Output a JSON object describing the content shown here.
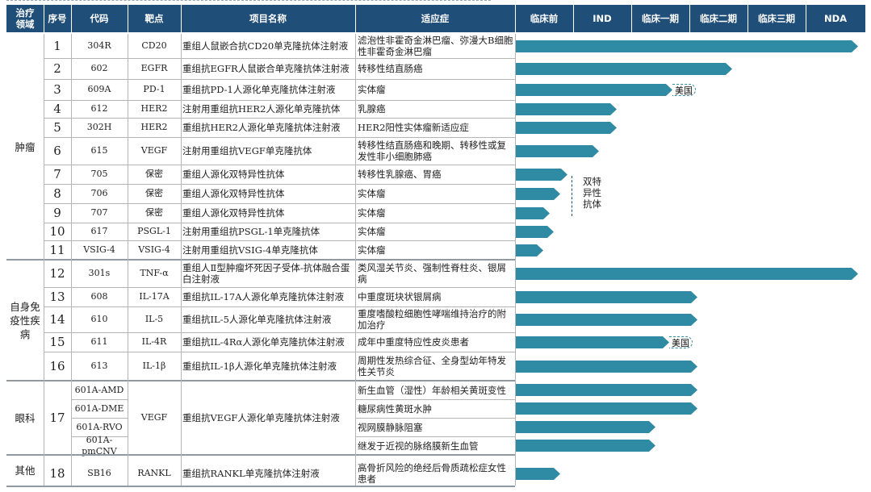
{
  "header": {
    "area": "治疗\n领域",
    "no": "序号",
    "code": "代码",
    "target": "靶点",
    "project": "项目名称",
    "indication": "适应症",
    "stages": [
      "临床前",
      "IND",
      "临床一期",
      "临床二期",
      "临床三期",
      "NDA"
    ]
  },
  "areas": [
    "肿瘤",
    "自身免\n疫性疾\n病",
    "眼科",
    "其他"
  ],
  "rows": [
    {
      "no": "1",
      "code": "304R",
      "target": "CD20",
      "project": "重组人鼠嵌合抗CD20单克隆抗体注射液",
      "indication": "滤泡性非霍奇金淋巴瘤、弥漫大B细胞性非霍奇金淋巴瘤",
      "progress": 0.98
    },
    {
      "no": "2",
      "code": "602",
      "target": "EGFR",
      "project": "重组抗EGFR人鼠嵌合单克隆抗体注射液",
      "indication": "转移性结直肠癌",
      "progress": 0.62
    },
    {
      "no": "3",
      "code": "609A",
      "target": "PD-1",
      "project": "重组抗PD-1人源化单克隆抗体注射液",
      "indication": "实体瘤",
      "progress": 0.45,
      "tag": "美国"
    },
    {
      "no": "4",
      "code": "612",
      "target": "HER2",
      "project": "注射用重组抗HER2人源化单克隆抗体",
      "indication": "乳腺癌",
      "progress": 0.29
    },
    {
      "no": "5",
      "code": "302H",
      "target": "HER2",
      "project": "重组抗HER2人源化单克隆抗体注射液",
      "indication": "HER2阳性实体瘤新适应症",
      "progress": 0.29
    },
    {
      "no": "6",
      "code": "615",
      "target": "VEGF",
      "project": "注射用重组抗VEGF单克隆抗体",
      "indication": "转移性结直肠癌和晚期、转移性或复发性非小细胞肺癌",
      "progress": 0.24
    },
    {
      "no": "7",
      "code": "705",
      "target": "保密",
      "project": "重组人源化双特异性抗体",
      "indication": "转移性乳腺癌、胃癌",
      "progress": 0.15
    },
    {
      "no": "8",
      "code": "706",
      "target": "保密",
      "project": "重组人源化双特异性抗体",
      "indication": "实体瘤",
      "progress": 0.13
    },
    {
      "no": "9",
      "code": "707",
      "target": "保密",
      "project": "重组人源化双特异性抗体",
      "indication": "实体瘤",
      "progress": 0.1
    },
    {
      "no": "10",
      "code": "617",
      "target": "PSGL-1",
      "project": "注射用重组抗PSGL-1单克隆抗体",
      "indication": "实体瘤",
      "progress": 0.11
    },
    {
      "no": "11",
      "code": "VSIG-4",
      "target": "VSIG-4",
      "project": "注射用重组抗VSIG-4单克隆抗体",
      "indication": "实体瘤",
      "progress": 0.08
    },
    {
      "no": "12",
      "code": "301s",
      "target": "TNF-α",
      "project": "重组人Ⅱ型肿瘤坏死因子受体-抗体融合蛋白注射液",
      "indication": "类风湿关节炎、强制性脊柱炎、银屑病",
      "progress": 0.98
    },
    {
      "no": "13",
      "code": "608",
      "target": "IL-17A",
      "project": "重组抗IL-17A人源化单克隆抗体注射液",
      "indication": "中重度斑块状银屑病",
      "progress": 0.52
    },
    {
      "no": "14",
      "code": "610",
      "target": "IL-5",
      "project": "重组抗IL-5人源化单克隆抗体注射液",
      "indication": "重度嗜酸粒细胞性哮喘维持治疗的附加治疗",
      "progress": 0.52
    },
    {
      "no": "15",
      "code": "611",
      "target": "IL-4R",
      "project": "重组抗IL-4Rα人源化单克隆抗体注射液",
      "indication": "成年中重度特应性皮炎患者",
      "progress": 0.44,
      "tag": "美国"
    },
    {
      "no": "16",
      "code": "613",
      "target": "IL-1β",
      "project": "重组抗IL-1β人源化单克隆抗体注射液",
      "indication": "周期性发热综合征、全身型幼年特发性关节炎",
      "progress": 0.52
    },
    {
      "no": "17",
      "codes": [
        "601A-AMD",
        "601A-DME",
        "601A-RVO",
        "601A-pmCNV"
      ],
      "target": "VEGF",
      "project": "重组抗VEGF人源化单克隆抗体注射液",
      "indications": [
        "新生血管（湿性）年龄相关黄斑变性",
        "糖尿病性黄斑水肿",
        "视网膜静脉阻塞",
        "继发于近视的脉络膜新生血管"
      ],
      "progresses": [
        0.52,
        0.52,
        0.4,
        0.4
      ]
    },
    {
      "no": "18",
      "code": "SB16",
      "target": "RANKL",
      "project": "重组抗RANKL单克隆抗体注射液",
      "indication": "高骨折风险的绝经后骨质疏松症女性患者",
      "progress": 0.13
    }
  ],
  "bispecific_label": "双特\n异性\n抗体",
  "colors": {
    "header_bg": "#1f4e79",
    "bar": "#2e8ba3"
  }
}
